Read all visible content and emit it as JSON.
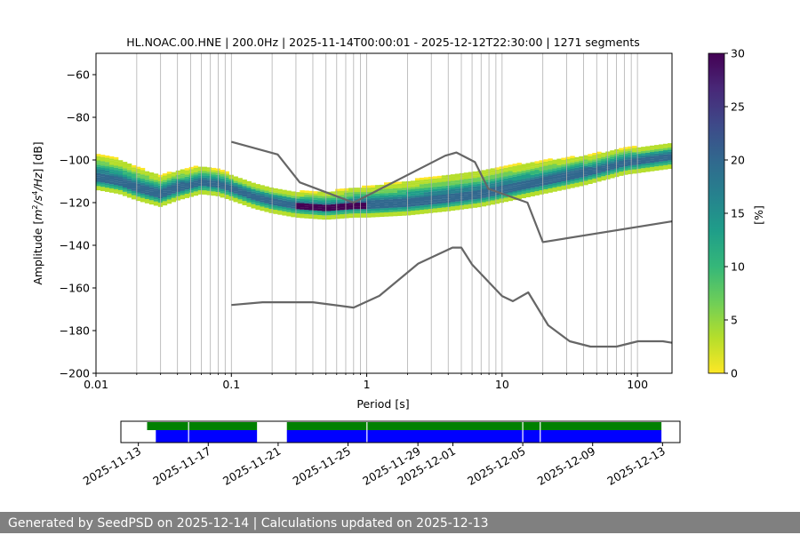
{
  "colors": {
    "noise_model": "#666666",
    "grid": "#b0b0b0",
    "coverage_data": "#0000ff",
    "coverage_segments": "#008000",
    "footer_bg": "#808080",
    "colormap": [
      "#fde725",
      "#b5de2b",
      "#6ece58",
      "#35b779",
      "#1f9e89",
      "#26828e",
      "#31688e",
      "#3e4989",
      "#482878",
      "#440154"
    ]
  },
  "chart_data": [
    {
      "type": "heatmap",
      "title": "HL.NOAC.00.HNE | 200.0Hz | 2025-11-14T00:00:01 - 2025-12-12T22:30:00 | 1271 segments",
      "xlabel": "Period [s]",
      "ylabel": "Amplitude [m²/s⁴/Hz] [dB]",
      "xscale": "log",
      "xlim": [
        0.01,
        180
      ],
      "ylim": [
        -200,
        -50
      ],
      "x_ticks": [
        {
          "value": 0.01,
          "label": "0.01"
        },
        {
          "value": 0.1,
          "label": "0.1"
        },
        {
          "value": 1,
          "label": "1"
        },
        {
          "value": 10,
          "label": "10"
        },
        {
          "value": 100,
          "label": "100"
        }
      ],
      "y_ticks": [
        {
          "value": -60,
          "label": "−60"
        },
        {
          "value": -80,
          "label": "−80"
        },
        {
          "value": -100,
          "label": "−100"
        },
        {
          "value": -120,
          "label": "−120"
        },
        {
          "value": -140,
          "label": "−140"
        },
        {
          "value": -160,
          "label": "−160"
        },
        {
          "value": -180,
          "label": "−180"
        },
        {
          "value": -200,
          "label": "−200"
        }
      ],
      "grid": "vertical log lines",
      "colorbar": {
        "label": "[%]",
        "range": [
          0,
          30
        ],
        "ticks": [
          {
            "value": 0,
            "label": "0"
          },
          {
            "value": 5,
            "label": "5"
          },
          {
            "value": 10,
            "label": "10"
          },
          {
            "value": 15,
            "label": "15"
          },
          {
            "value": 20,
            "label": "20"
          },
          {
            "value": 25,
            "label": "25"
          },
          {
            "value": 30,
            "label": "30"
          }
        ]
      },
      "ppsd_mode": [
        [
          0.01,
          -108
        ],
        [
          0.015,
          -110
        ],
        [
          0.02,
          -113
        ],
        [
          0.03,
          -116
        ],
        [
          0.04,
          -113
        ],
        [
          0.06,
          -110
        ],
        [
          0.08,
          -111
        ],
        [
          0.1,
          -113
        ],
        [
          0.15,
          -117
        ],
        [
          0.2,
          -119
        ],
        [
          0.3,
          -121
        ],
        [
          0.5,
          -122
        ],
        [
          0.8,
          -121
        ],
        [
          1,
          -121
        ],
        [
          2,
          -120
        ],
        [
          4,
          -118
        ],
        [
          7,
          -116
        ],
        [
          10,
          -114
        ],
        [
          20,
          -110
        ],
        [
          40,
          -106
        ],
        [
          80,
          -101
        ],
        [
          180,
          -98
        ]
      ],
      "ppsd_max_percent_region": [
        [
          0.3,
          1.0,
          -121
        ]
      ],
      "noise_models": [
        {
          "name": "NHNM",
          "points": [
            [
              0.1,
              -91.5
            ],
            [
              0.22,
              -97.4
            ],
            [
              0.32,
              -110.5
            ],
            [
              0.8,
              -120
            ],
            [
              3.8,
              -98
            ],
            [
              4.6,
              -96.5
            ],
            [
              6.3,
              -101
            ],
            [
              7.9,
              -113.5
            ],
            [
              15.4,
              -120
            ],
            [
              20,
              -138.5
            ],
            [
              180,
              -128.8
            ]
          ]
        },
        {
          "name": "NLNM",
          "points": [
            [
              0.1,
              -168
            ],
            [
              0.17,
              -166.7
            ],
            [
              0.4,
              -166.7
            ],
            [
              0.8,
              -169.2
            ],
            [
              1.24,
              -163.7
            ],
            [
              2.4,
              -148.6
            ],
            [
              4.3,
              -141.1
            ],
            [
              5.0,
              -141.1
            ],
            [
              6.0,
              -149
            ],
            [
              10,
              -163.8
            ],
            [
              12,
              -166.2
            ],
            [
              15.6,
              -162.1
            ],
            [
              21.9,
              -177.5
            ],
            [
              31.6,
              -185
            ],
            [
              45,
              -187.5
            ],
            [
              70,
              -187.5
            ],
            [
              101,
              -185
            ],
            [
              154,
              -185
            ],
            [
              180,
              -185.7
            ]
          ]
        }
      ]
    },
    {
      "type": "timeline",
      "xlim": [
        "2025-11-12",
        "2025-12-14"
      ],
      "x_ticks": [
        "2025-11-13",
        "2025-11-17",
        "2025-11-21",
        "2025-11-25",
        "2025-11-29",
        "2025-12-01",
        "2025-12-05",
        "2025-12-09",
        "2025-12-13"
      ],
      "segments": [
        [
          "2025-11-13T12:00",
          "2025-11-19T19:00"
        ],
        [
          "2025-11-21T12:00",
          "2025-12-12T22:30"
        ]
      ],
      "data_used": [
        [
          "2025-11-14T00:00",
          "2025-11-19T19:00"
        ],
        [
          "2025-11-21T12:00",
          "2025-12-12T22:30"
        ]
      ],
      "gaps": [
        "2025-11-15T21:00",
        "2025-11-26T02:00",
        "2025-12-05T00:00",
        "2025-12-06T00:00"
      ]
    }
  ],
  "footer": {
    "text": "Generated by SeedPSD on 2025-12-14 | Calculations updated on 2025-12-13"
  }
}
